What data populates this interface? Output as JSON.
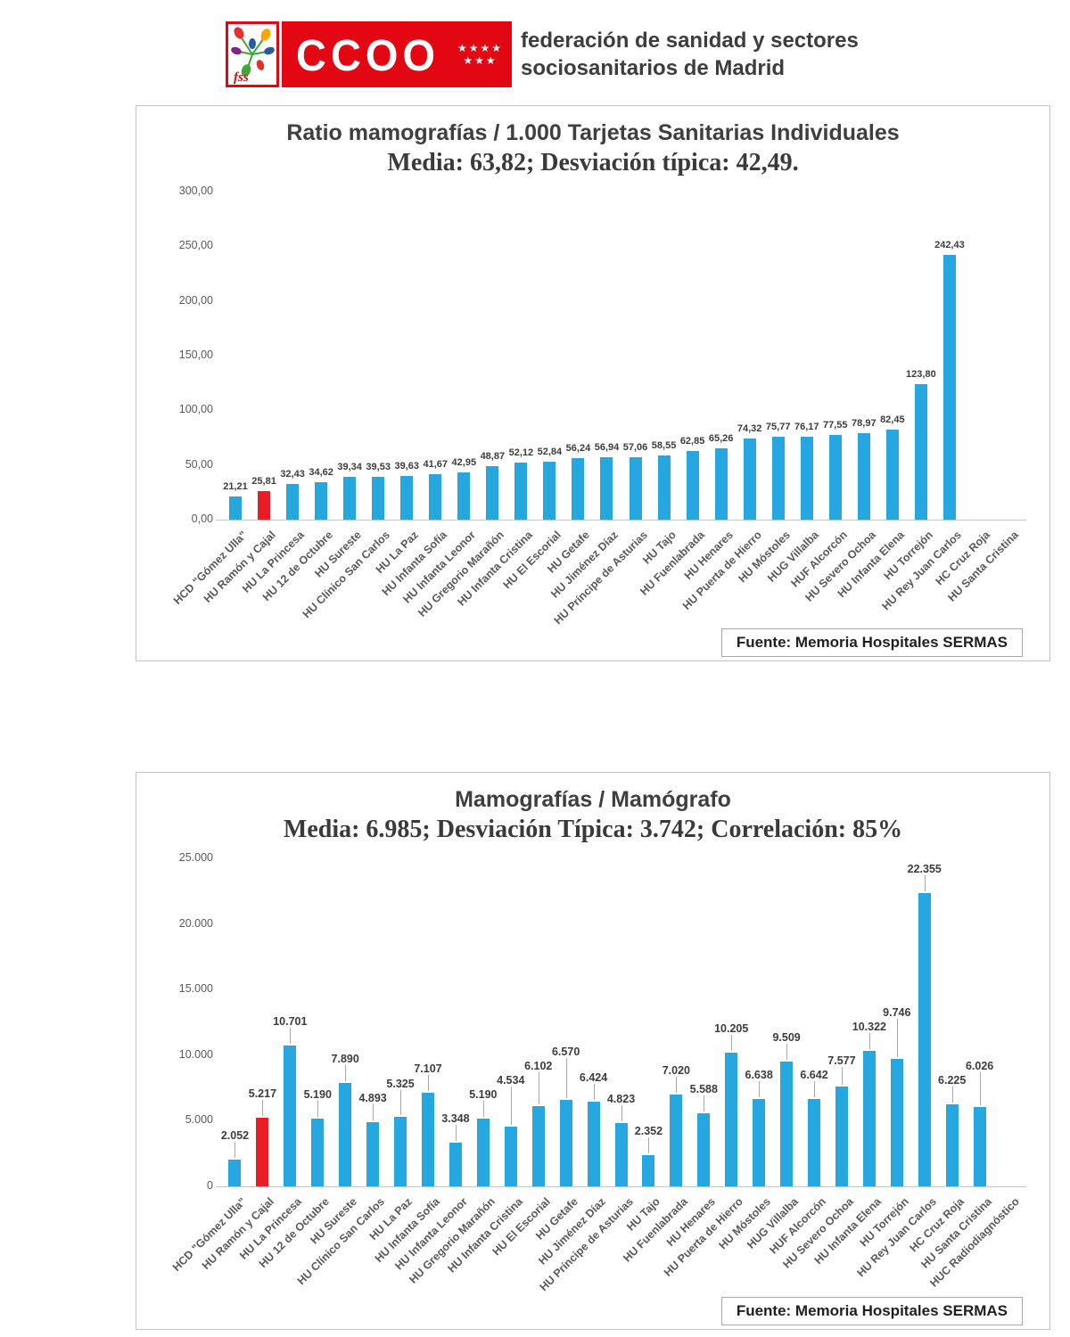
{
  "header": {
    "logo": {
      "fss_text": "fss",
      "ccoo_text": "CCOO",
      "stars_row1": "★★★★",
      "stars_row2": "★★★",
      "brand_red": "#e30613"
    },
    "org_line1": "federación de sanidad y sectores",
    "org_line2": "sociosanitarios de Madrid"
  },
  "chart_data": [
    {
      "type": "bar",
      "title": "Ratio mamografías / 1.000 Tarjetas Sanitarias Individuales",
      "subtitle": "Media: 63,82; Desviación típica: 42,49.",
      "source": "Fuente: Memoria Hospitales SERMAS",
      "legend": false,
      "grid": false,
      "callouts": false,
      "bar_color": "#27a7e0",
      "highlight_color": "#ec1c24",
      "highlight_index": 1,
      "ylim": [
        0,
        300
      ],
      "ytick_values": [
        0,
        50,
        100,
        150,
        200,
        250,
        300
      ],
      "ytick_labels": [
        "0,00",
        "50,00",
        "100,00",
        "150,00",
        "200,00",
        "250,00",
        "300,00"
      ],
      "categories": [
        "HCD \"Gómez Ulla\"",
        "HU Ramón y Cajal",
        "HU La Princesa",
        "HU 12 de Octubre",
        "HU Sureste",
        "HU Clínico San Carlos",
        "HU La Paz",
        "HU Infanta Sofía",
        "HU Infanta Leonor",
        "HU Gregorio Marañón",
        "HU Infanta Cristina",
        "HU El Escorial",
        "HU Getafe",
        "HU Jiménez Díaz",
        "HU Príncipe de Asturias",
        "HU Tajo",
        "HU Fuenlabrada",
        "HU Henares",
        "HU Puerta de Hierro",
        "HU Móstoles",
        "HUG Villalba",
        "HUF Alcorcón",
        "HU Severo Ochoa",
        "HU Infanta Elena",
        "HU Torrejón",
        "HU Rey Juan Carlos",
        "HC Cruz Roja",
        "HU Santa Cristina"
      ],
      "values": [
        21.21,
        25.81,
        32.43,
        34.62,
        39.34,
        39.53,
        39.63,
        41.67,
        42.95,
        48.87,
        52.12,
        52.84,
        56.24,
        56.94,
        57.06,
        58.55,
        62.85,
        65.26,
        74.32,
        75.77,
        76.17,
        77.55,
        78.97,
        82.45,
        123.8,
        242.43,
        null,
        null
      ],
      "value_labels": [
        "21,21",
        "25,81",
        "32,43",
        "34,62",
        "39,34",
        "39,53",
        "39,63",
        "41,67",
        "42,95",
        "48,87",
        "52,12",
        "52,84",
        "56,24",
        "56,94",
        "57,06",
        "58,55",
        "62,85",
        "65,26",
        "74,32",
        "75,77",
        "76,17",
        "77,55",
        "78,97",
        "82,45",
        "123,80",
        "242,43",
        "",
        ""
      ]
    },
    {
      "type": "bar",
      "title": "Mamografías / Mamógrafo",
      "subtitle": "Media: 6.985; Desviación Típica: 3.742; Correlación: 85%",
      "source": "Fuente: Memoria Hospitales SERMAS",
      "legend": false,
      "grid": false,
      "callouts": true,
      "bar_color": "#27a7e0",
      "highlight_color": "#ec1c24",
      "highlight_index": 1,
      "ylim": [
        0,
        25000
      ],
      "ytick_values": [
        0,
        5000,
        10000,
        15000,
        20000,
        25000
      ],
      "ytick_labels": [
        "0",
        "5.000",
        "10.000",
        "15.000",
        "20.000",
        "25.000"
      ],
      "categories": [
        "HCD \"Gómez Ulla\"",
        "HU Ramón y Cajal",
        "HU La Princesa",
        "HU 12 de Octubre",
        "HU Sureste",
        "HU Clínico San Carlos",
        "HU La Paz",
        "HU Infanta Sofía",
        "HU Infanta Leonor",
        "HU Gregorio Marañón",
        "HU Infanta Cristina",
        "HU El Escorial",
        "HU Getafe",
        "HU Jiménez Díaz",
        "HU Príncipe de Asturias",
        "HU Tajo",
        "HU Fuenlabrada",
        "HU Henares",
        "HU Puerta de Hierro",
        "HU Móstoles",
        "HUG Villalba",
        "HUF Alcorcón",
        "HU Severo Ochoa",
        "HU Infanta Elena",
        "HU Torrejón",
        "HU Rey Juan Carlos",
        "HC Cruz Roja",
        "HU Santa Cristina",
        "HUC Radiodiagnóstico"
      ],
      "values": [
        2052,
        5217,
        10701,
        5190,
        7890,
        4893,
        5325,
        7107,
        3348,
        5190,
        4534,
        6102,
        6570,
        6424,
        4823,
        2352,
        7020,
        5588,
        10205,
        6638,
        9509,
        6642,
        7577,
        10322,
        9746,
        22355,
        6225,
        6026,
        null
      ],
      "value_labels": [
        "2.052",
        "5.217",
        "10.701",
        "5.190",
        "7.890",
        "4.893",
        "5.325",
        "7.107",
        "3.348",
        "5.190",
        "4.534",
        "6.102",
        "6.570",
        "6.424",
        "4.823",
        "2.352",
        "7.020",
        "5.588",
        "10.205",
        "6.638",
        "9.509",
        "6.642",
        "7.577",
        "10.322",
        "9.746",
        "22.355",
        "6.225",
        "6.026",
        ""
      ]
    }
  ]
}
